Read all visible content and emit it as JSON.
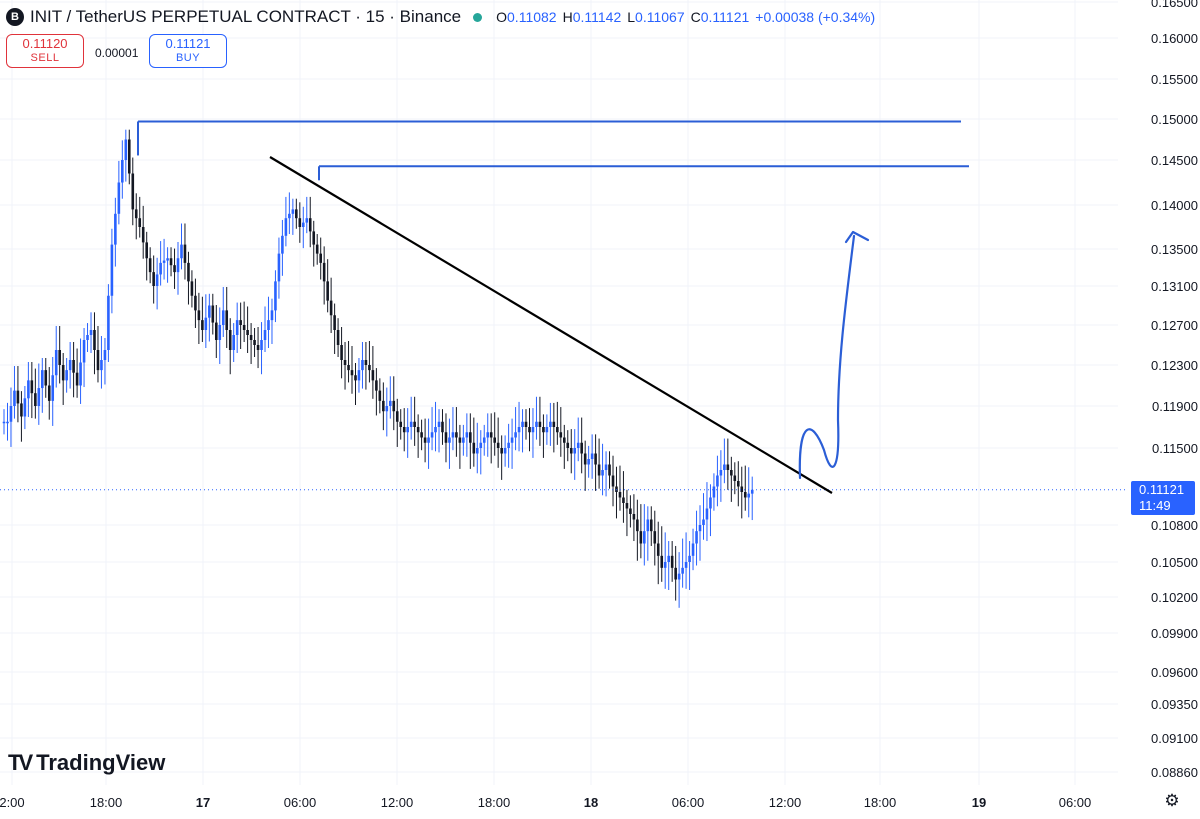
{
  "header": {
    "logo_letter": "B",
    "title": "INIT / TetherUS PERPETUAL CONTRACT · 15 · Binance",
    "open_key": "O",
    "open": "0.11082",
    "high_key": "H",
    "high": "0.11142",
    "low_key": "L",
    "low": "0.11067",
    "close_key": "C",
    "close": "0.11121",
    "change": "+0.00038 (+0.34%)"
  },
  "trade": {
    "sell_price": "0.11120",
    "sell_label": "SELL",
    "spread": "0.00001",
    "buy_price": "0.11121",
    "buy_label": "BUY"
  },
  "current_price": {
    "price": "0.11121",
    "countdown": "11:49"
  },
  "branding": {
    "name": "TradingView",
    "mark": "TV"
  },
  "colors": {
    "up": "#2962ff",
    "down": "#131722",
    "drawing": "#2b5ed6",
    "trendline": "#000000"
  },
  "chart_data": {
    "type": "candlestick",
    "title": "INIT / TetherUS PERPETUAL CONTRACT · 15 · Binance",
    "y_axis_labels": [
      "0.16500",
      "0.16000",
      "0.15500",
      "0.15000",
      "0.14500",
      "0.14000",
      "0.13500",
      "0.13100",
      "0.12700",
      "0.12300",
      "0.11900",
      "0.11500",
      "0.10800",
      "0.10500",
      "0.10200",
      "0.09900",
      "0.09600",
      "0.09350",
      "0.09100",
      "0.08860"
    ],
    "x_axis_labels": [
      "2:00",
      "18:00",
      "17",
      "06:00",
      "12:00",
      "18:00",
      "18",
      "06:00",
      "12:00",
      "18:00",
      "19",
      "06:00"
    ],
    "current_price": 0.11121,
    "close_path": [
      0.1175,
      0.1205,
      0.118,
      0.1215,
      0.119,
      0.1225,
      0.1195,
      0.1245,
      0.1215,
      0.1235,
      0.121,
      0.1255,
      0.1265,
      0.1225,
      0.1245,
      0.1355,
      0.1425,
      0.1475,
      0.1395,
      0.1375,
      0.134,
      0.131,
      0.1335,
      0.134,
      0.1325,
      0.1355,
      0.1315,
      0.1285,
      0.1265,
      0.129,
      0.1255,
      0.1285,
      0.1245,
      0.1275,
      0.1265,
      0.1255,
      0.1245,
      0.1265,
      0.1285,
      0.1345,
      0.1385,
      0.1395,
      0.1375,
      0.1385,
      0.1355,
      0.1335,
      0.1295,
      0.1265,
      0.1235,
      0.1225,
      0.1215,
      0.1235,
      0.1225,
      0.1205,
      0.1185,
      0.1195,
      0.1175,
      0.1165,
      0.1175,
      0.1165,
      0.1155,
      0.1165,
      0.1175,
      0.1155,
      0.1165,
      0.1155,
      0.1165,
      0.1145,
      0.1155,
      0.1165,
      0.1155,
      0.1145,
      0.1155,
      0.1165,
      0.1175,
      0.1165,
      0.1175,
      0.1165,
      0.1175,
      0.1165,
      0.1155,
      0.1145,
      0.1155,
      0.1135,
      0.1145,
      0.1125,
      0.1135,
      0.1115,
      0.1105,
      0.1095,
      0.1085,
      0.1065,
      0.1085,
      0.1065,
      0.1045,
      0.1055,
      0.1035,
      0.1045,
      0.1055,
      0.1075,
      0.1085,
      0.1105,
      0.1125,
      0.1135,
      0.1125,
      0.1115,
      0.1105,
      0.1112
    ],
    "resistance_levels": [
      0.1497,
      0.1443
    ],
    "trendline_start": {
      "x_label": "04:00 (17)",
      "price": 0.1455
    },
    "trendline_end": {
      "x_label": "15:00 (18)",
      "price": 0.1112
    },
    "projection": "breakout arrow up toward 0.1365",
    "grid": true
  }
}
